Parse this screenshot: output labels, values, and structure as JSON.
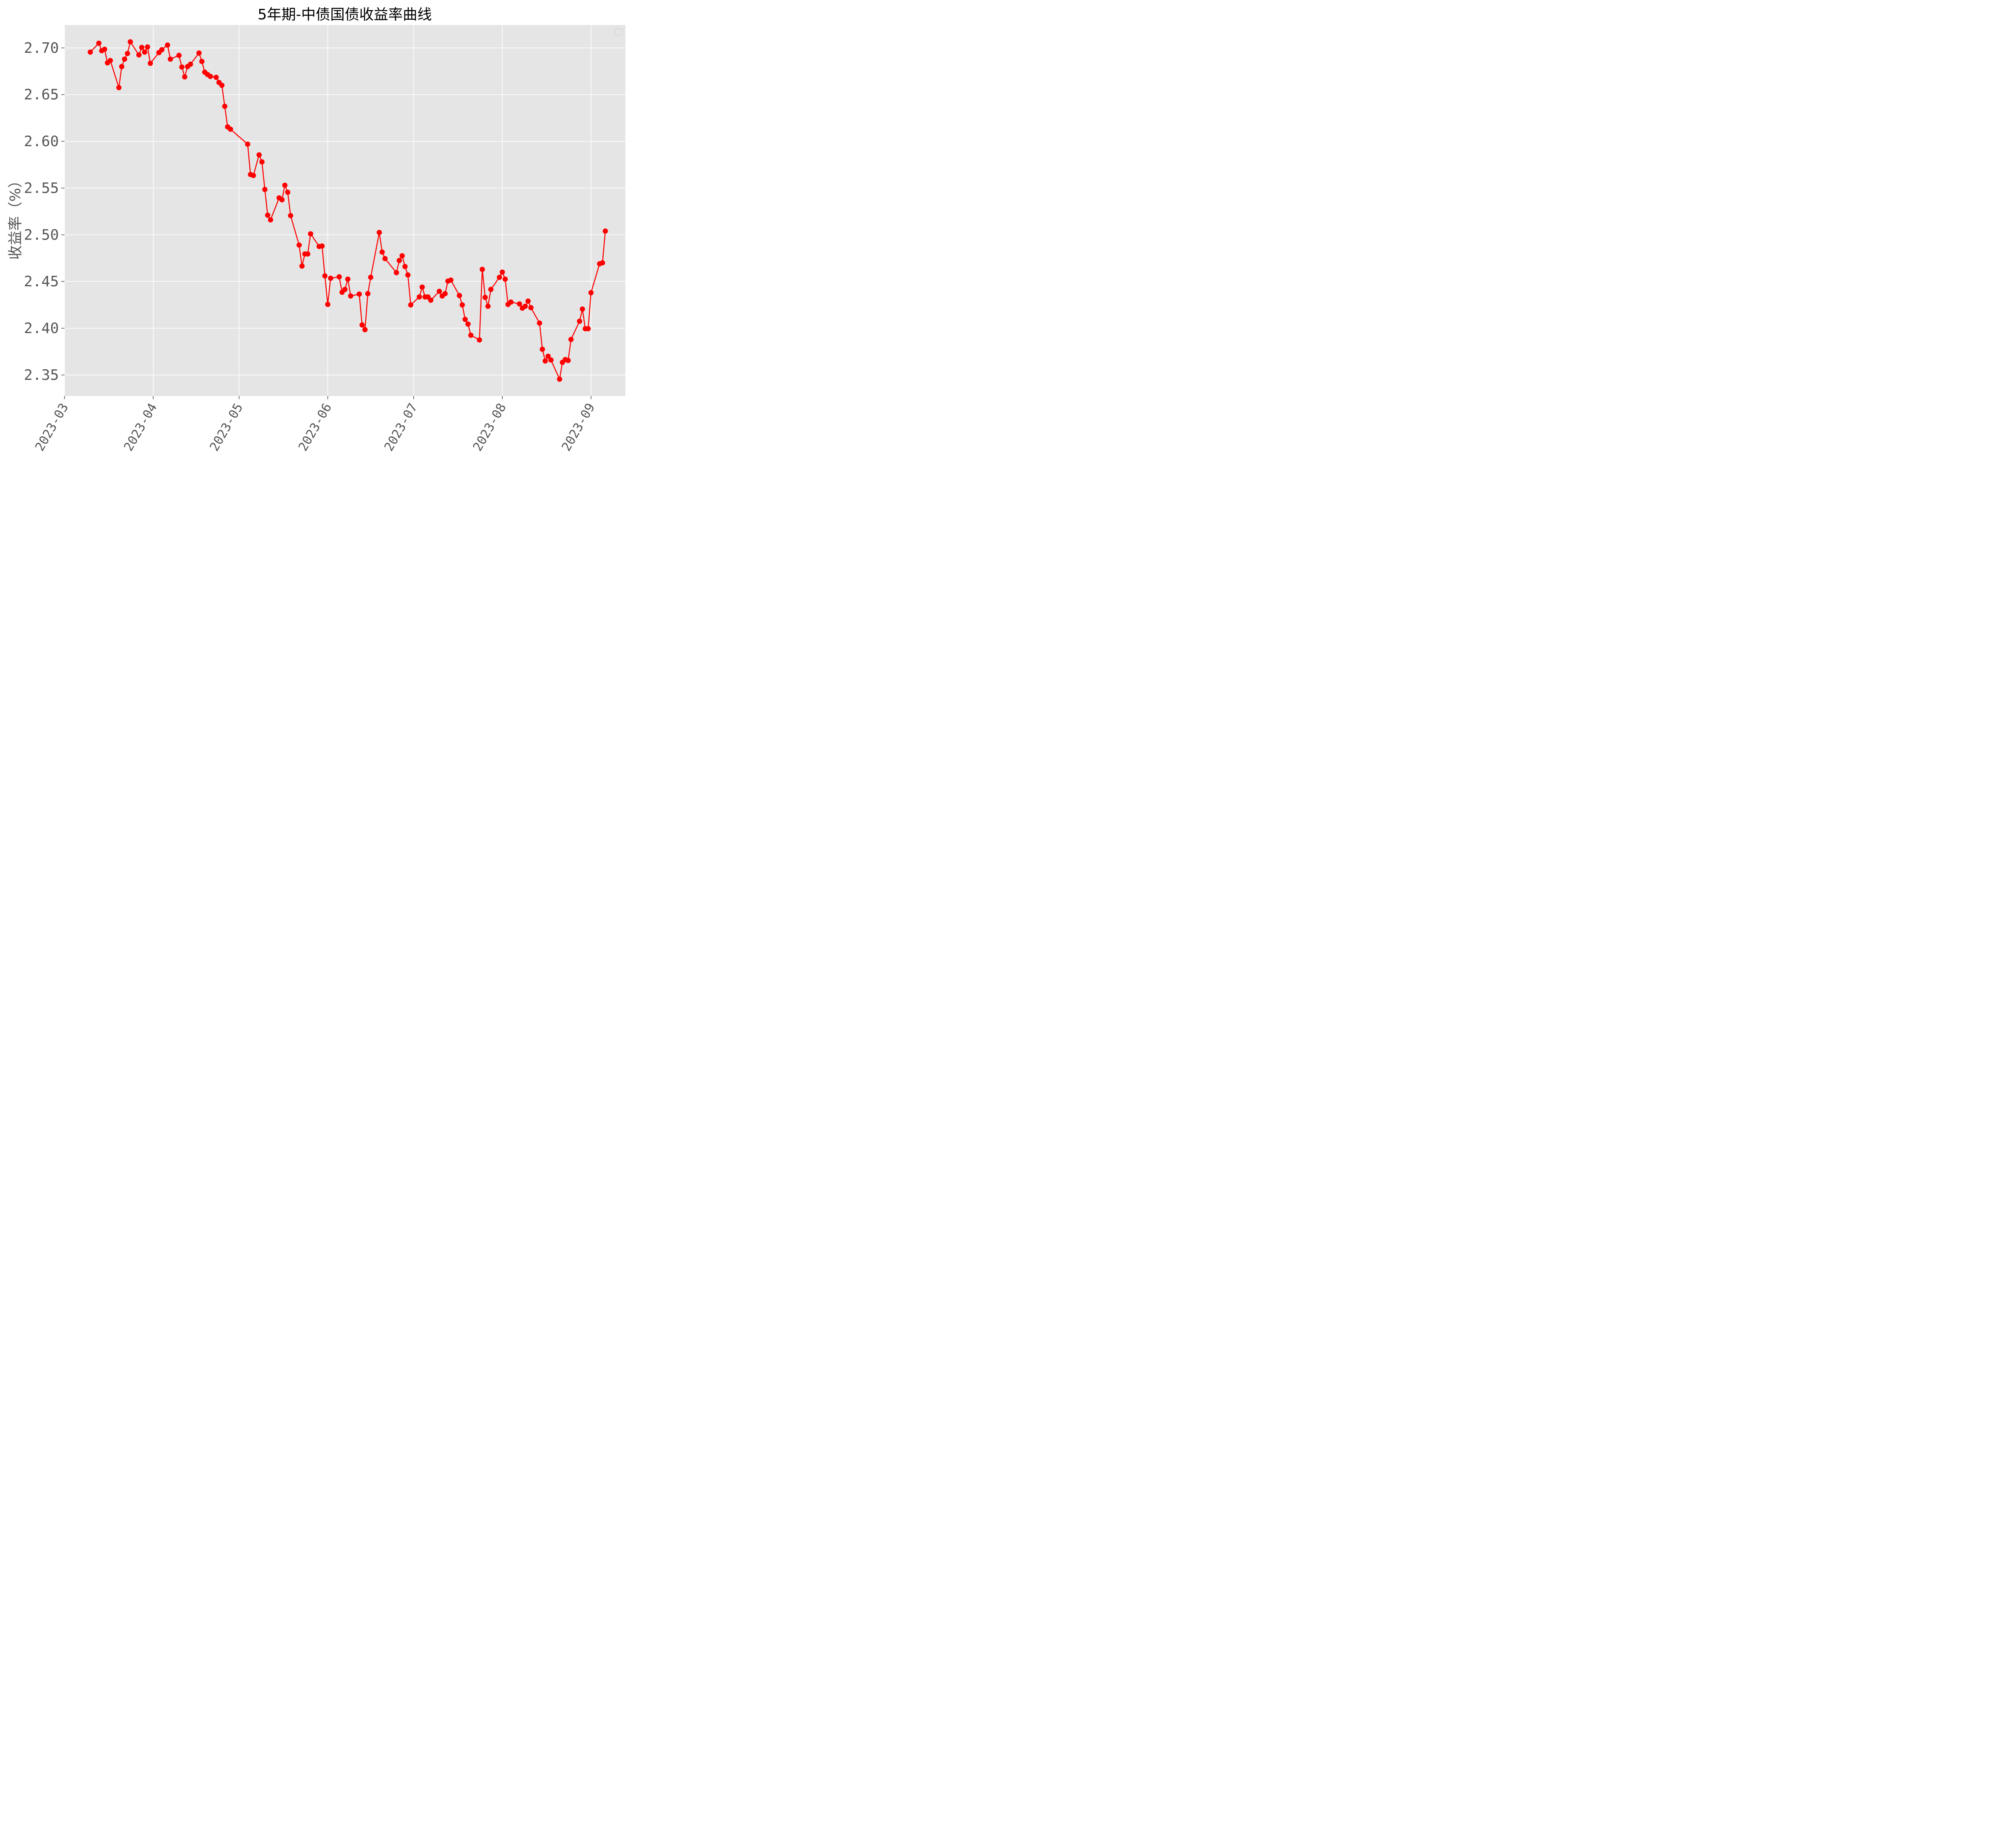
{
  "chart_data": {
    "type": "line",
    "title": "5年期-中债国债收益率曲线",
    "ylabel": "收益率（%）",
    "xlabel": "",
    "x_tick_labels": [
      "2023-03",
      "2023-04",
      "2023-05",
      "2023-06",
      "2023-07",
      "2023-08",
      "2023-09"
    ],
    "x_tick_dates": [
      "2023-03-01",
      "2023-04-01",
      "2023-05-01",
      "2023-06-01",
      "2023-07-01",
      "2023-08-01",
      "2023-09-01"
    ],
    "y_tick_labels": [
      "2.35",
      "2.40",
      "2.45",
      "2.50",
      "2.55",
      "2.60",
      "2.65",
      "2.70"
    ],
    "y_ticks": [
      2.35,
      2.4,
      2.45,
      2.5,
      2.55,
      2.6,
      2.65,
      2.7
    ],
    "xlim": [
      "2023-03-01",
      "2023-09-13"
    ],
    "ylim": [
      2.3275,
      2.7245
    ],
    "grid": true,
    "legend": "top-right",
    "background_color": "#e5e5e5",
    "grid_color": "#ffffff",
    "series": [
      {
        "color": "#ff0000",
        "marker": "circle",
        "points": [
          [
            "2023-03-10",
            2.6955
          ],
          [
            "2023-03-13",
            2.705
          ],
          [
            "2023-03-14",
            2.697
          ],
          [
            "2023-03-15",
            2.6985
          ],
          [
            "2023-03-16",
            2.684
          ],
          [
            "2023-03-17",
            2.6865
          ],
          [
            "2023-03-20",
            2.6575
          ],
          [
            "2023-03-21",
            2.68
          ],
          [
            "2023-03-22",
            2.688
          ],
          [
            "2023-03-23",
            2.694
          ],
          [
            "2023-03-24",
            2.7065
          ],
          [
            "2023-03-27",
            2.6925
          ],
          [
            "2023-03-28",
            2.7005
          ],
          [
            "2023-03-29",
            2.6955
          ],
          [
            "2023-03-30",
            2.701
          ],
          [
            "2023-03-31",
            2.6835
          ],
          [
            "2023-04-03",
            2.695
          ],
          [
            "2023-04-04",
            2.698
          ],
          [
            "2023-04-06",
            2.703
          ],
          [
            "2023-04-07",
            2.688
          ],
          [
            "2023-04-10",
            2.692
          ],
          [
            "2023-04-11",
            2.6795
          ],
          [
            "2023-04-12",
            2.669
          ],
          [
            "2023-04-13",
            2.68
          ],
          [
            "2023-04-14",
            2.6825
          ],
          [
            "2023-04-17",
            2.6945
          ],
          [
            "2023-04-18",
            2.6855
          ],
          [
            "2023-04-19",
            2.674
          ],
          [
            "2023-04-20",
            2.6715
          ],
          [
            "2023-04-21",
            2.6695
          ],
          [
            "2023-04-23",
            2.6685
          ],
          [
            "2023-04-24",
            2.663
          ],
          [
            "2023-04-25",
            2.66
          ],
          [
            "2023-04-26",
            2.6375
          ],
          [
            "2023-04-27",
            2.6155
          ],
          [
            "2023-04-28",
            2.613
          ],
          [
            "2023-05-04",
            2.597
          ],
          [
            "2023-05-05",
            2.5645
          ],
          [
            "2023-05-06",
            2.5635
          ],
          [
            "2023-05-08",
            2.5855
          ],
          [
            "2023-05-09",
            2.578
          ],
          [
            "2023-05-10",
            2.5485
          ],
          [
            "2023-05-11",
            2.521
          ],
          [
            "2023-05-12",
            2.516
          ],
          [
            "2023-05-15",
            2.5395
          ],
          [
            "2023-05-16",
            2.5375
          ],
          [
            "2023-05-17",
            2.553
          ],
          [
            "2023-05-18",
            2.5455
          ],
          [
            "2023-05-19",
            2.5205
          ],
          [
            "2023-05-22",
            2.489
          ],
          [
            "2023-05-23",
            2.4665
          ],
          [
            "2023-05-24",
            2.4795
          ],
          [
            "2023-05-25",
            2.4795
          ],
          [
            "2023-05-26",
            2.501
          ],
          [
            "2023-05-29",
            2.4875
          ],
          [
            "2023-05-30",
            2.488
          ],
          [
            "2023-05-31",
            2.456
          ],
          [
            "2023-06-01",
            2.4255
          ],
          [
            "2023-06-02",
            2.4535
          ],
          [
            "2023-06-05",
            2.455
          ],
          [
            "2023-06-06",
            2.4385
          ],
          [
            "2023-06-07",
            2.4415
          ],
          [
            "2023-06-08",
            2.4525
          ],
          [
            "2023-06-09",
            2.4345
          ],
          [
            "2023-06-12",
            2.4365
          ],
          [
            "2023-06-13",
            2.4035
          ],
          [
            "2023-06-14",
            2.3985
          ],
          [
            "2023-06-15",
            2.437
          ],
          [
            "2023-06-16",
            2.4545
          ],
          [
            "2023-06-19",
            2.5025
          ],
          [
            "2023-06-20",
            2.4815
          ],
          [
            "2023-06-21",
            2.4745
          ],
          [
            "2023-06-25",
            2.4595
          ],
          [
            "2023-06-26",
            2.4725
          ],
          [
            "2023-06-27",
            2.4775
          ],
          [
            "2023-06-28",
            2.466
          ],
          [
            "2023-06-29",
            2.457
          ],
          [
            "2023-06-30",
            2.425
          ],
          [
            "2023-07-03",
            2.4335
          ],
          [
            "2023-07-04",
            2.444
          ],
          [
            "2023-07-05",
            2.4335
          ],
          [
            "2023-07-06",
            2.4335
          ],
          [
            "2023-07-07",
            2.43
          ],
          [
            "2023-07-10",
            2.4395
          ],
          [
            "2023-07-11",
            2.4345
          ],
          [
            "2023-07-12",
            2.437
          ],
          [
            "2023-07-13",
            2.4505
          ],
          [
            "2023-07-14",
            2.4515
          ],
          [
            "2023-07-17",
            2.435
          ],
          [
            "2023-07-18",
            2.425
          ],
          [
            "2023-07-19",
            2.4095
          ],
          [
            "2023-07-20",
            2.4045
          ],
          [
            "2023-07-21",
            2.3925
          ],
          [
            "2023-07-24",
            2.3875
          ],
          [
            "2023-07-25",
            2.463
          ],
          [
            "2023-07-26",
            2.433
          ],
          [
            "2023-07-27",
            2.4235
          ],
          [
            "2023-07-28",
            2.4415
          ],
          [
            "2023-07-31",
            2.4545
          ],
          [
            "2023-08-01",
            2.46
          ],
          [
            "2023-08-02",
            2.4525
          ],
          [
            "2023-08-03",
            2.4255
          ],
          [
            "2023-08-04",
            2.428
          ],
          [
            "2023-08-07",
            2.426
          ],
          [
            "2023-08-08",
            2.4215
          ],
          [
            "2023-08-09",
            2.4235
          ],
          [
            "2023-08-10",
            2.429
          ],
          [
            "2023-08-11",
            2.422
          ],
          [
            "2023-08-14",
            2.4055
          ],
          [
            "2023-08-15",
            2.3775
          ],
          [
            "2023-08-16",
            2.365
          ],
          [
            "2023-08-17",
            2.37
          ],
          [
            "2023-08-18",
            2.366
          ],
          [
            "2023-08-21",
            2.3455
          ],
          [
            "2023-08-22",
            2.3635
          ],
          [
            "2023-08-23",
            2.3665
          ],
          [
            "2023-08-24",
            2.3655
          ],
          [
            "2023-08-25",
            2.388
          ],
          [
            "2023-08-28",
            2.4075
          ],
          [
            "2023-08-29",
            2.4205
          ],
          [
            "2023-08-30",
            2.3995
          ],
          [
            "2023-08-31",
            2.3995
          ],
          [
            "2023-09-01",
            2.438
          ],
          [
            "2023-09-04",
            2.469
          ],
          [
            "2023-09-05",
            2.47
          ],
          [
            "2023-09-06",
            2.504
          ]
        ]
      }
    ]
  }
}
